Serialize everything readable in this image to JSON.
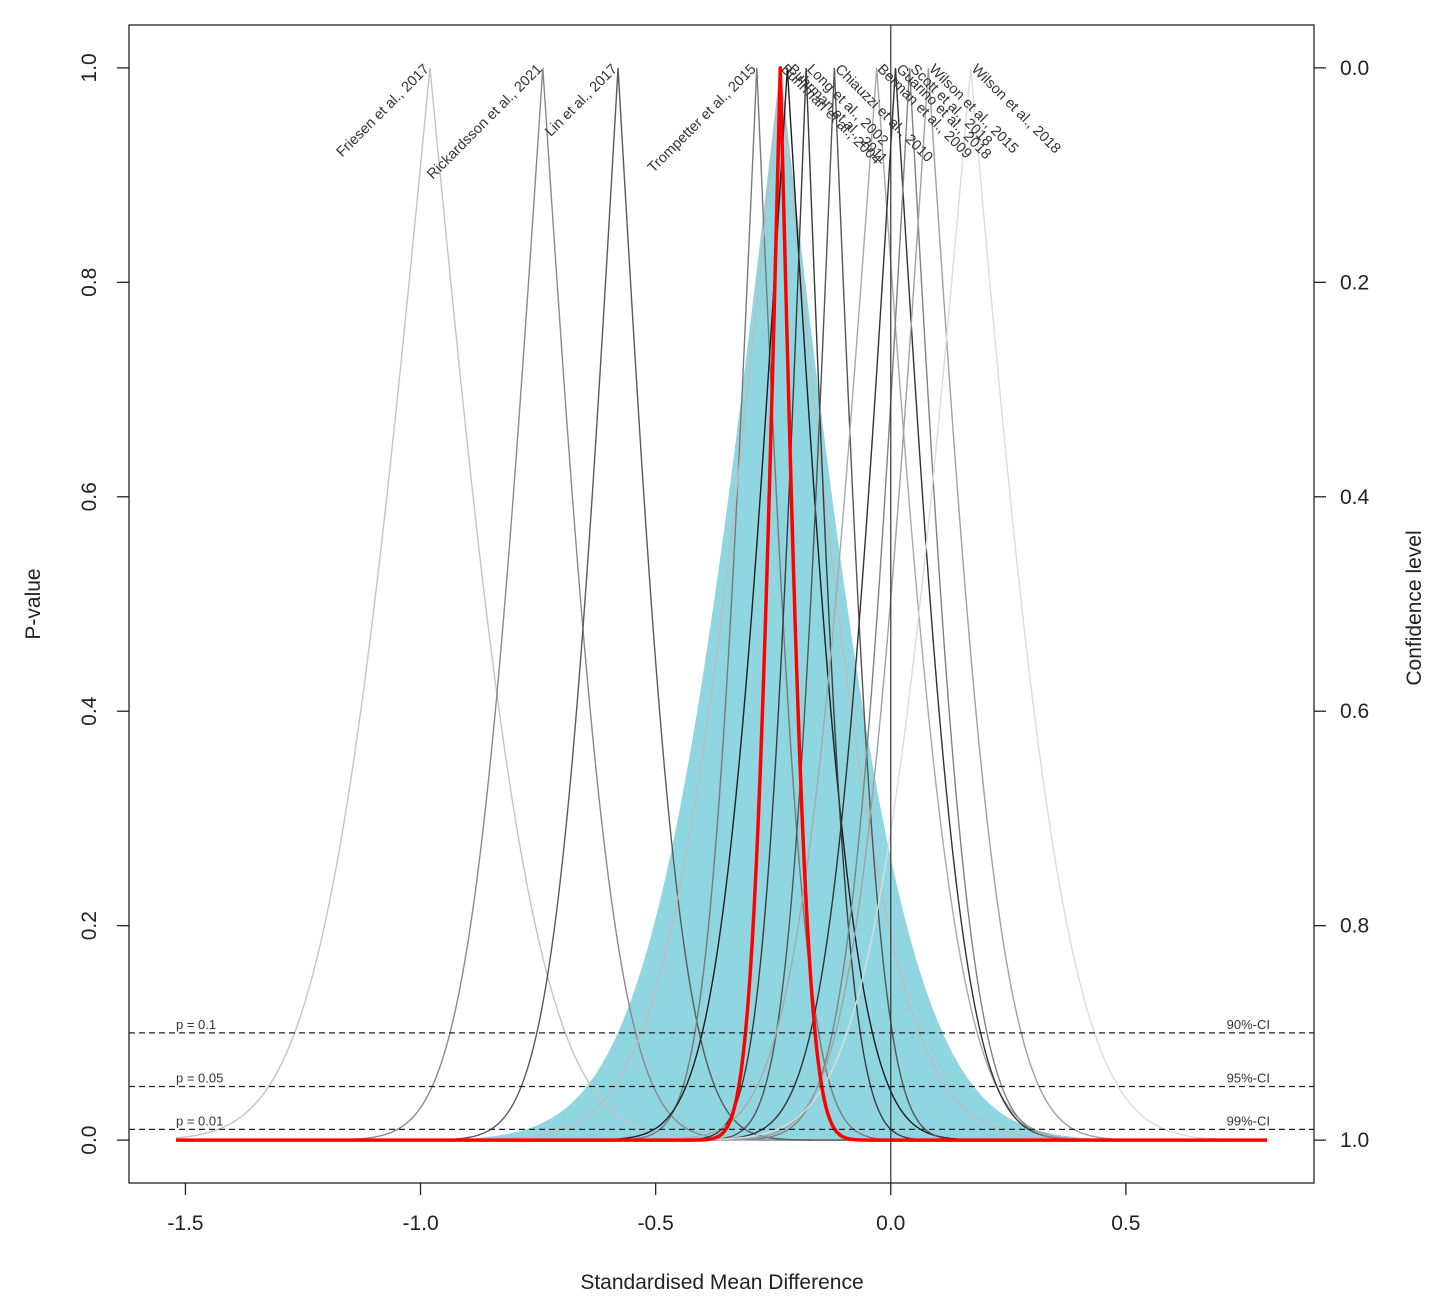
{
  "chart_data": {
    "type": "line",
    "title": "",
    "xlabel": "Standardised Mean Difference",
    "ylabel": "P-value",
    "ylabel_right": "Confidence level",
    "xlim": [
      -1.62,
      0.9
    ],
    "ylim": [
      -0.04,
      1.04
    ],
    "x_ticks": [
      -1.5,
      -1.0,
      -0.5,
      0.0,
      0.5
    ],
    "x_tick_labels": [
      "-1.5",
      "-1.0",
      "-0.5",
      "0.0",
      "0.5"
    ],
    "y_ticks": [
      0.0,
      0.2,
      0.4,
      0.6,
      0.8,
      1.0
    ],
    "y_tick_labels": [
      "0.0",
      "0.2",
      "0.4",
      "0.6",
      "0.8",
      "1.0"
    ],
    "y_right_ticks": [
      1.0,
      0.8,
      0.6,
      0.4,
      0.2,
      0.0
    ],
    "y_right_tick_labels": [
      "1.0",
      "0.8",
      "0.6",
      "0.4",
      "0.2",
      "0.0"
    ],
    "x_range_curves": [
      -1.52,
      0.8
    ],
    "grid": false,
    "vertical_reference": 0.0,
    "reference_lines": [
      {
        "p": 0.1,
        "left_label": "p = 0.1",
        "right_label": "90%-CI"
      },
      {
        "p": 0.05,
        "left_label": "p = 0.05",
        "right_label": "95%-CI"
      },
      {
        "p": 0.01,
        "left_label": "p = 0.01",
        "right_label": "99%-CI"
      }
    ],
    "studies": [
      {
        "name": "Friesen et al., 2017",
        "estimate": -0.98,
        "se": 0.175,
        "color": "#c4c4c4"
      },
      {
        "name": "Rickardsson et al., 2021",
        "estimate": -0.74,
        "se": 0.12,
        "color": "#8a8a8a"
      },
      {
        "name": "Lin et al., 2017",
        "estimate": -0.58,
        "se": 0.105,
        "color": "#5a5a5a"
      },
      {
        "name": "Trompetter et al., 2015",
        "estimate": -0.285,
        "se": 0.08,
        "color": "#7a7a7a"
      },
      {
        "name": "Buhrman et al., 2004",
        "estimate": -0.235,
        "se": 0.18,
        "color": "#bdbdbd"
      },
      {
        "name": "Buhrman et al., 2011",
        "estimate": -0.22,
        "se": 0.11,
        "color": "#1e1e1e"
      },
      {
        "name": "Long et al., 2002",
        "estimate": -0.18,
        "se": 0.07,
        "color": "#3c3c3c"
      },
      {
        "name": "Chiauzzi et al., 2010",
        "estimate": -0.12,
        "se": 0.075,
        "color": "#555555"
      },
      {
        "name": "Berman et al., 2009",
        "estimate": -0.03,
        "se": 0.13,
        "color": "#a8a8a8"
      },
      {
        "name": "Guarino et al., 2018",
        "estimate": 0.01,
        "se": 0.11,
        "color": "#333333"
      },
      {
        "name": "Scott et al., 2018",
        "estimate": 0.04,
        "se": 0.1,
        "color": "#828282"
      },
      {
        "name": "Wilson et al., 2015",
        "estimate": 0.08,
        "se": 0.12,
        "color": "#a0a0a0"
      },
      {
        "name": "Wilson et al., 2018",
        "estimate": 0.17,
        "se": 0.16,
        "color": "#dcdcdc"
      }
    ],
    "pooled_random": {
      "estimate": -0.235,
      "se": 0.21,
      "color": "#8fd6e1"
    },
    "pooled_fixed": {
      "estimate": -0.235,
      "se": 0.045,
      "color": "#ff0000"
    }
  }
}
